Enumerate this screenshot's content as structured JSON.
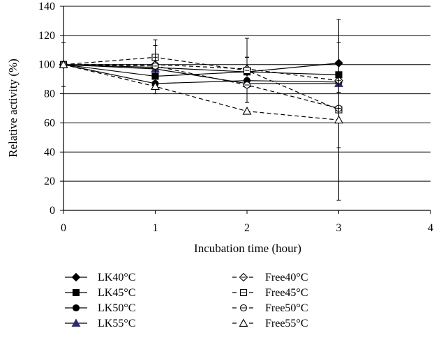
{
  "chart_data": {
    "type": "line",
    "xlabel": "Incubation time (hour)",
    "ylabel": "Relative activity (%)",
    "xlim": [
      0,
      4
    ],
    "ylim": [
      0,
      140
    ],
    "x_ticks": [
      0,
      1,
      2,
      3,
      4
    ],
    "y_ticks": [
      0,
      20,
      40,
      60,
      80,
      100,
      120,
      140
    ],
    "grid": "horizontal",
    "legend_position": "bottom",
    "x": [
      0,
      1,
      2,
      3
    ],
    "series": [
      {
        "name": "LK40°C",
        "line": "solid",
        "marker": "diamond",
        "fill": "filled",
        "marker_color": "#000000",
        "values": [
          100,
          98,
          95,
          101
        ],
        "err": [
          0,
          0,
          10,
          14
        ]
      },
      {
        "name": "LK45°C",
        "line": "solid",
        "marker": "square",
        "fill": "filled",
        "marker_color": "#000000",
        "values": [
          100,
          92,
          95,
          93
        ],
        "err": [
          0,
          0,
          0,
          0
        ]
      },
      {
        "name": "LK50°C",
        "line": "solid",
        "marker": "circle",
        "fill": "filled",
        "marker_color": "#000000",
        "values": [
          100,
          87,
          89,
          88
        ],
        "err": [
          0,
          0,
          0,
          0
        ]
      },
      {
        "name": "LK55°C",
        "line": "solid",
        "marker": "triangle",
        "fill": "filled",
        "marker_color": "#2e2a6e",
        "values": [
          100,
          97,
          87,
          87
        ],
        "err": [
          0,
          0,
          0,
          0
        ]
      },
      {
        "name": "Free40°C",
        "line": "dashed",
        "marker": "diamond",
        "fill": "open",
        "marker_color": "#000000",
        "values": [
          100,
          100,
          97,
          89
        ],
        "err": [
          0,
          0,
          8,
          0
        ]
      },
      {
        "name": "Free45°C",
        "line": "dashed",
        "marker": "square",
        "fill": "open",
        "marker_color": "#000000",
        "values": [
          100,
          105,
          96,
          69
        ],
        "err": [
          15,
          12,
          22,
          62
        ]
      },
      {
        "name": "Free50°C",
        "line": "dashed",
        "marker": "circle",
        "fill": "open",
        "marker_color": "#000000",
        "values": [
          100,
          99,
          86,
          70
        ],
        "err": [
          0,
          14,
          0,
          0
        ]
      },
      {
        "name": "Free55°C",
        "line": "dashed",
        "marker": "triangle",
        "fill": "open",
        "marker_color": "#000000",
        "values": [
          100,
          85,
          68,
          62
        ],
        "err": [
          0,
          5,
          0,
          19
        ]
      }
    ]
  }
}
